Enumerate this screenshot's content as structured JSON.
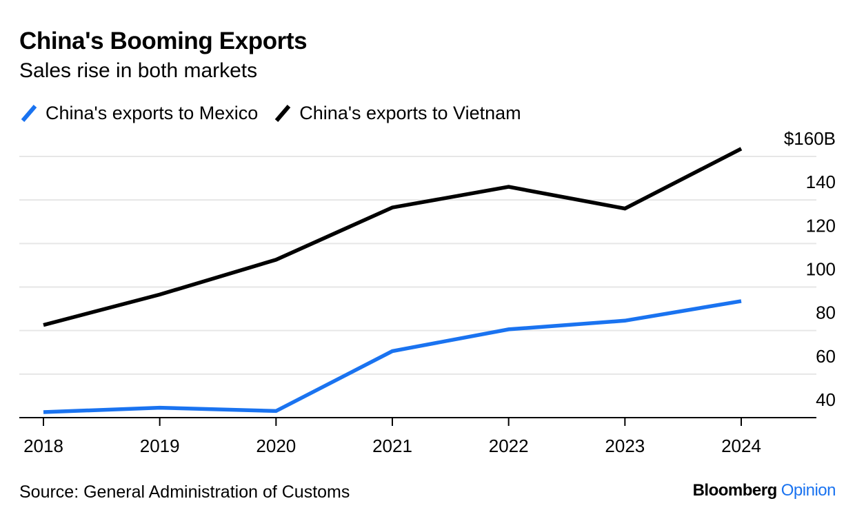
{
  "header": {
    "title": "China's Booming Exports",
    "subtitle": "Sales rise in both markets"
  },
  "colors": {
    "mexico": "#1a73f0",
    "vietnam": "#000000",
    "grid": "#e6e6e6",
    "axis": "#000000",
    "brand_accent": "#1a73f0"
  },
  "chart_data": {
    "type": "line",
    "x": [
      "2018",
      "2019",
      "2020",
      "2021",
      "2022",
      "2023",
      "2024"
    ],
    "series": [
      {
        "name": "China's exports to Mexico",
        "color": "#1a73f0",
        "values": [
          34,
          36,
          34.5,
          62,
          72,
          76,
          85
        ]
      },
      {
        "name": "China's exports to Vietnam",
        "color": "#000000",
        "values": [
          74,
          88,
          104,
          128,
          137.5,
          127.5,
          155
        ]
      }
    ],
    "y_tick_values": [
      40,
      60,
      80,
      100,
      120,
      140,
      160
    ],
    "y_tick_labels": [
      "40",
      "60",
      "80",
      "100",
      "120",
      "140",
      "$160B"
    ],
    "ylim": [
      32,
      160
    ],
    "grid": true,
    "y_axis_side": "right",
    "legend_position": "top-left"
  },
  "footer": {
    "source": "Source: General Administration of Customs",
    "brand_main": "Bloomberg",
    "brand_opinion": "Opinion"
  }
}
